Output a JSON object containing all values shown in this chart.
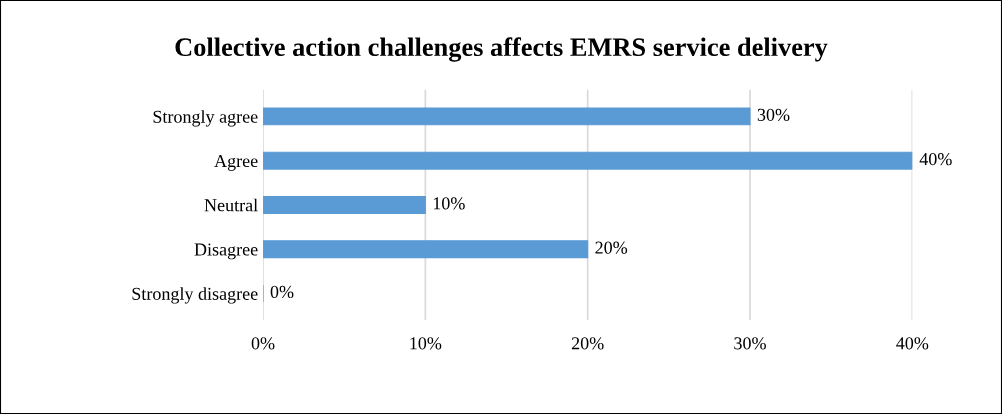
{
  "chart_data": {
    "type": "bar",
    "orientation": "horizontal",
    "title": "Collective action challenges affects EMRS service delivery",
    "categories": [
      "Strongly agree",
      "Agree",
      "Neutral",
      "Disagree",
      "Strongly disagree"
    ],
    "values": [
      30,
      40,
      10,
      20,
      0
    ],
    "color": "#5b9bd5",
    "value_labels": [
      "30%",
      "40%",
      "10%",
      "20%",
      "0%"
    ],
    "xlim": [
      0,
      40
    ],
    "xticks": [
      {
        "value": 0,
        "label": "0%"
      },
      {
        "value": 10,
        "label": "10%"
      },
      {
        "value": 20,
        "label": "20%"
      },
      {
        "value": 30,
        "label": "30%"
      },
      {
        "value": 40,
        "label": "40%"
      }
    ],
    "grid": "x",
    "legend": false
  }
}
